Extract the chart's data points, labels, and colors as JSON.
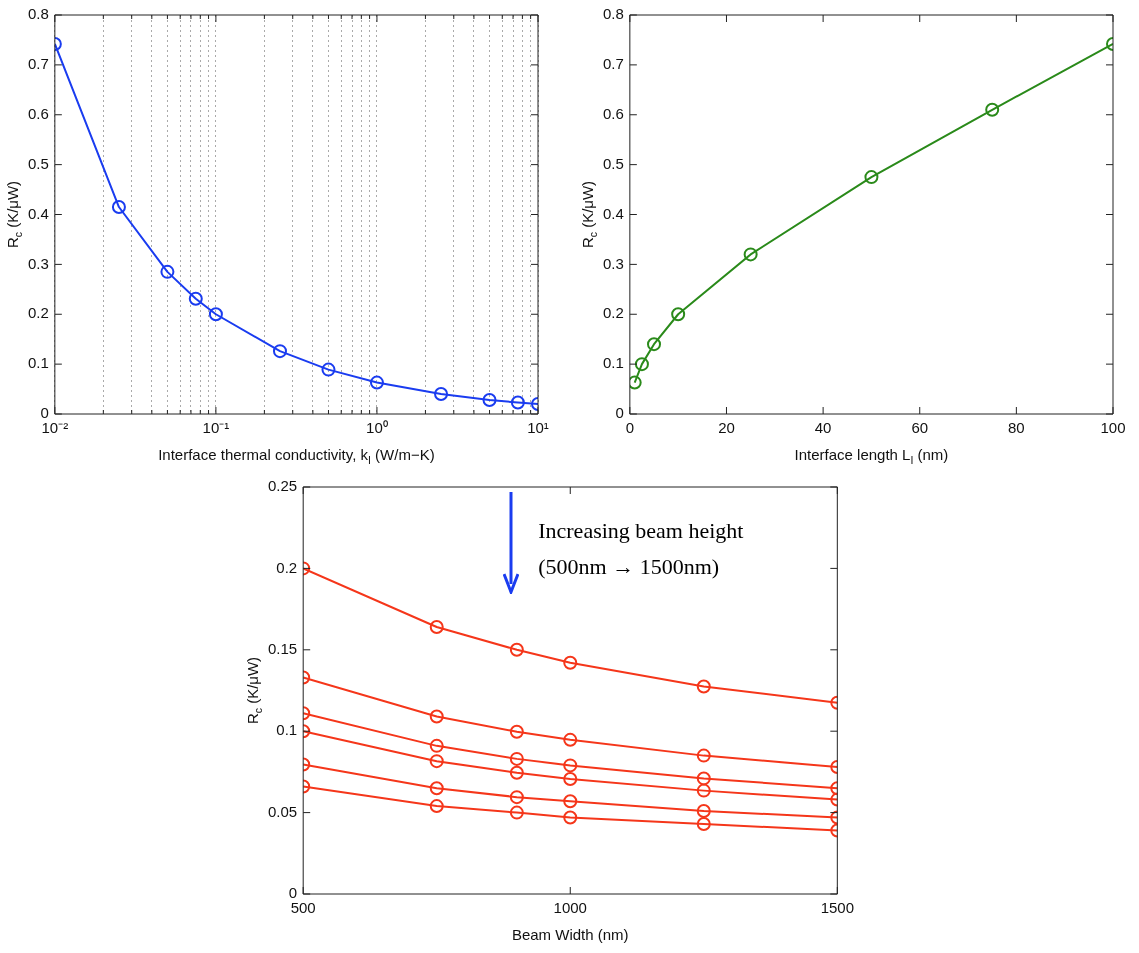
{
  "chart_data": [
    {
      "type": "line",
      "xlabel": "Interface thermal conductivity, k$_{I}$ (W/m−K)",
      "ylabel": "R$_{c}$ (K/μW)",
      "log": "x",
      "grid": "x",
      "marker": "circle",
      "line_style": "solid",
      "color": "#1a3cf0",
      "x": [
        0.01,
        0.025,
        0.05,
        0.075,
        0.1,
        0.25,
        0.5,
        1,
        2.5,
        5,
        7.5,
        10
      ],
      "values": [
        0.742,
        0.415,
        0.285,
        0.231,
        0.2,
        0.126,
        0.089,
        0.063,
        0.04,
        0.028,
        0.023,
        0.02
      ],
      "xlim": [
        0.01,
        10
      ],
      "xticks": [
        {
          "value": 0.01,
          "label": "10⁻²"
        },
        {
          "value": 0.02,
          "label": null
        },
        {
          "value": 0.03,
          "label": null
        },
        {
          "value": 0.04,
          "label": null
        },
        {
          "value": 0.05,
          "label": null
        },
        {
          "value": 0.06,
          "label": null
        },
        {
          "value": 0.07,
          "label": null
        },
        {
          "value": 0.08,
          "label": null
        },
        {
          "value": 0.09,
          "label": null
        },
        {
          "value": 0.1,
          "label": "10⁻¹"
        },
        {
          "value": 0.2,
          "label": null
        },
        {
          "value": 0.3,
          "label": null
        },
        {
          "value": 0.4,
          "label": null
        },
        {
          "value": 0.5,
          "label": null
        },
        {
          "value": 0.6,
          "label": null
        },
        {
          "value": 0.7,
          "label": null
        },
        {
          "value": 0.8,
          "label": null
        },
        {
          "value": 0.9,
          "label": null
        },
        {
          "value": 1,
          "label": "10⁰"
        },
        {
          "value": 2,
          "label": null
        },
        {
          "value": 3,
          "label": null
        },
        {
          "value": 4,
          "label": null
        },
        {
          "value": 5,
          "label": null
        },
        {
          "value": 6,
          "label": null
        },
        {
          "value": 7,
          "label": null
        },
        {
          "value": 8,
          "label": null
        },
        {
          "value": 9,
          "label": null
        },
        {
          "value": 10,
          "label": "10¹"
        }
      ],
      "ylim": [
        0,
        0.8
      ],
      "yticks": [
        0,
        0.1,
        0.2,
        0.3,
        0.4,
        0.5,
        0.6,
        0.7,
        0.8
      ]
    },
    {
      "type": "line",
      "xlabel": "Interface length L$_{I}$ (nm)",
      "ylabel": "R$_{c}$ (K/μW)",
      "grid": false,
      "marker": "circle",
      "line_style": "solid",
      "color": "#2a8a1a",
      "x": [
        1,
        2.5,
        5,
        10,
        25,
        50,
        75,
        100
      ],
      "values": [
        0.063,
        0.1,
        0.14,
        0.2,
        0.32,
        0.475,
        0.61,
        0.742
      ],
      "xlim": [
        0,
        100
      ],
      "xticks": [
        0,
        20,
        40,
        60,
        80,
        100
      ],
      "ylim": [
        0,
        0.8
      ],
      "yticks": [
        0,
        0.1,
        0.2,
        0.3,
        0.4,
        0.5,
        0.6,
        0.7,
        0.8
      ]
    },
    {
      "type": "line",
      "xlabel": "Beam Width (nm)",
      "ylabel": "R$_{c}$ (K/μW)",
      "grid": false,
      "marker": "circle",
      "line_style": "solid",
      "annotations": [
        "Increasing beam height",
        "(500nm → 1500nm)"
      ],
      "x": [
        500,
        750,
        900,
        1000,
        1250,
        1500
      ],
      "series": [
        {
          "color": "#f5361a",
          "values": [
            0.2,
            0.164,
            0.15,
            0.142,
            0.1275,
            0.1175
          ]
        },
        {
          "color": "#f5361a",
          "values": [
            0.133,
            0.109,
            0.0997,
            0.0947,
            0.085,
            0.078
          ]
        },
        {
          "color": "#f5361a",
          "values": [
            0.111,
            0.091,
            0.083,
            0.079,
            0.071,
            0.065
          ]
        },
        {
          "color": "#f5361a",
          "values": [
            0.1,
            0.0816,
            0.0745,
            0.0706,
            0.0635,
            0.058
          ]
        },
        {
          "color": "#f5361a",
          "values": [
            0.0795,
            0.065,
            0.0595,
            0.057,
            0.051,
            0.047
          ]
        },
        {
          "color": "#f5361a",
          "values": [
            0.066,
            0.054,
            0.05,
            0.047,
            0.043,
            0.039
          ]
        }
      ],
      "xlim": [
        500,
        1500
      ],
      "xticks": [
        500,
        1000,
        1500
      ],
      "ylim": [
        0,
        0.25
      ],
      "yticks": [
        0,
        0.05,
        0.1,
        0.15,
        0.2,
        0.25
      ]
    }
  ]
}
